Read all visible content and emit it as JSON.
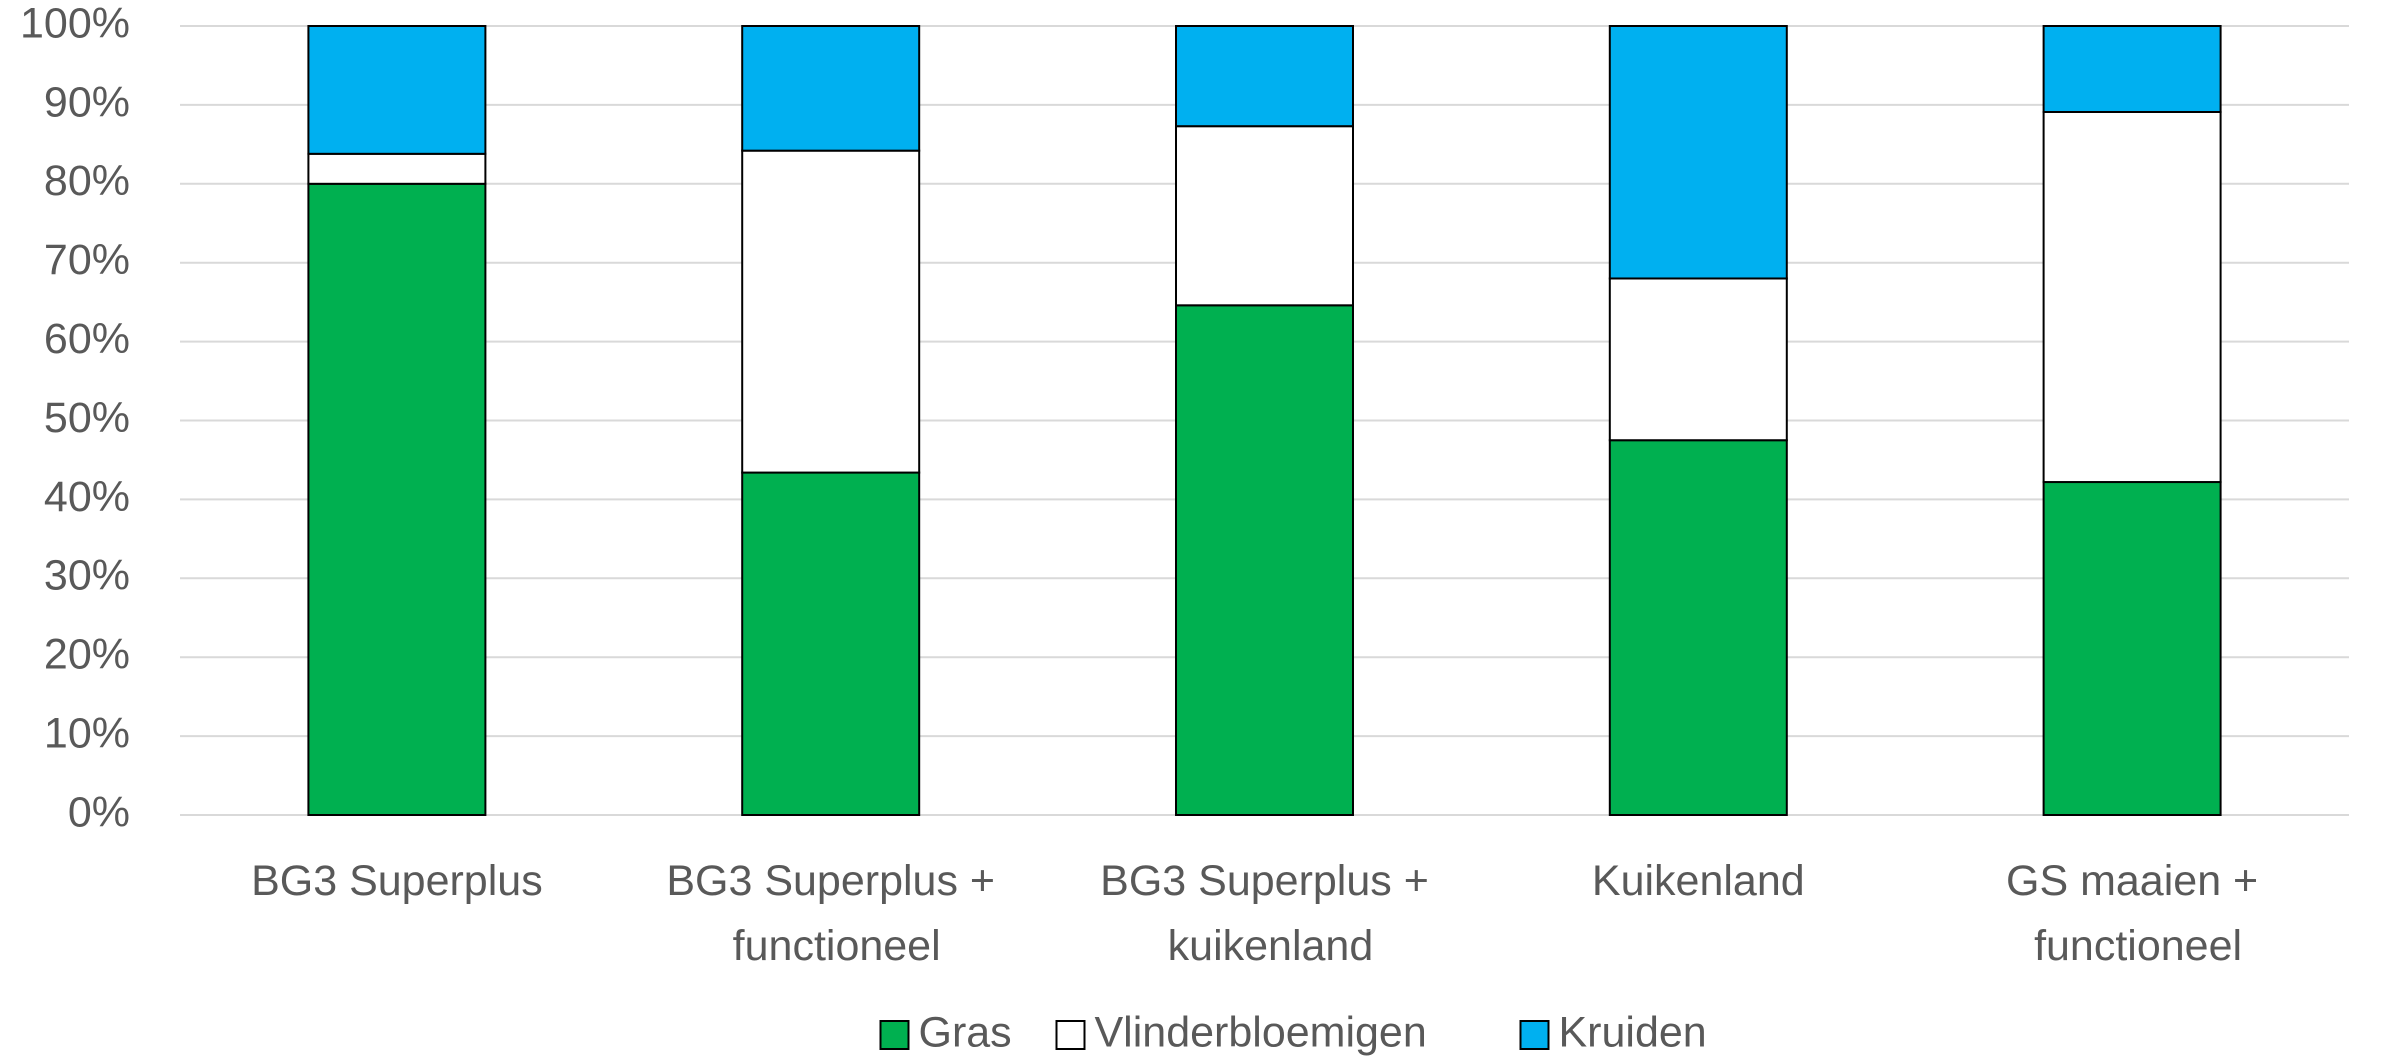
{
  "chart_data": {
    "type": "stacked_bar",
    "categories": [
      "BG3 Superplus",
      "BG3 Superplus + functioneel",
      "BG3 Superplus + kuikenland",
      "Kuikenland",
      "GS maaien + functioneel"
    ],
    "series": [
      {
        "name": "Gras",
        "color": "#00b050",
        "values": [
          80,
          43.4,
          64.6,
          47.5,
          42.2
        ]
      },
      {
        "name": "Vlinderbloemigen",
        "color": "#ffffff",
        "values": [
          3.8,
          40.8,
          22.7,
          20.5,
          46.9
        ]
      },
      {
        "name": "Kruiden",
        "color": "#00b0f0",
        "values": [
          16.2,
          15.8,
          12.7,
          32,
          10.9
        ]
      }
    ],
    "ylim": [
      0,
      100
    ],
    "yticks": [
      {
        "value": 0,
        "label": "0%"
      },
      {
        "value": 10,
        "label": "10%"
      },
      {
        "value": 20,
        "label": "20%"
      },
      {
        "value": 30,
        "label": "30%"
      },
      {
        "value": 40,
        "label": "40%"
      },
      {
        "value": 50,
        "label": "50%"
      },
      {
        "value": 60,
        "label": "60%"
      },
      {
        "value": 70,
        "label": "70%"
      },
      {
        "value": 80,
        "label": "80%"
      },
      {
        "value": 90,
        "label": "90%"
      },
      {
        "value": 100,
        "label": "100%"
      }
    ],
    "grid": true,
    "legend": "bottom"
  }
}
